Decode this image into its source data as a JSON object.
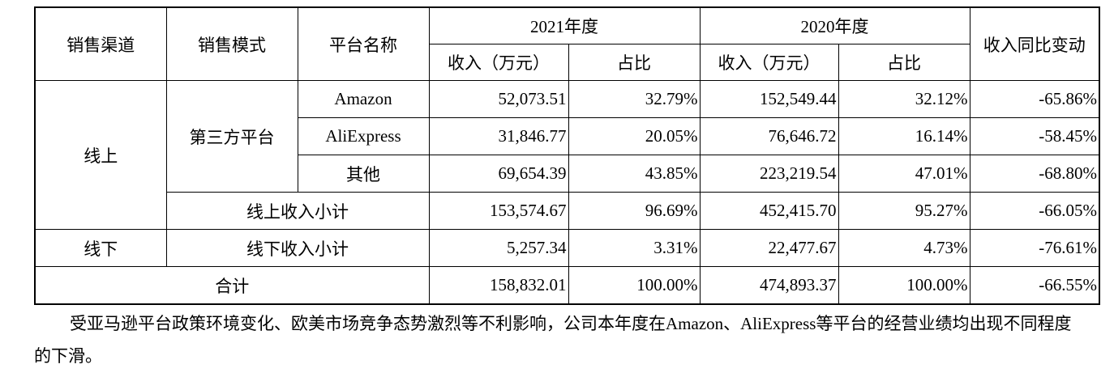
{
  "table": {
    "header_top": [
      "销售渠道",
      "销售模式",
      "平台名称",
      "2021年度",
      "2020年度",
      "收入同比变动"
    ],
    "header_sub": [
      "收入（万元）",
      "占比",
      "收入（万元）",
      "占比"
    ],
    "channels": [
      "线上",
      "线下"
    ],
    "modes": [
      "第三方平台"
    ],
    "rows": [
      {
        "label": "Amazon",
        "cells": [
          "52,073.51",
          "32.79%",
          "152,549.44",
          "32.12%",
          "-65.86%"
        ]
      },
      {
        "label": "AliExpress",
        "cells": [
          "31,846.77",
          "20.05%",
          "76,646.72",
          "16.14%",
          "-58.45%"
        ]
      },
      {
        "label": "其他",
        "cells": [
          "69,654.39",
          "43.85%",
          "223,219.54",
          "47.01%",
          "-68.80%"
        ]
      },
      {
        "label": "线上收入小计",
        "cells": [
          "153,574.67",
          "96.69%",
          "452,415.70",
          "95.27%",
          "-66.05%"
        ]
      },
      {
        "label": "线下收入小计",
        "cells": [
          "5,257.34",
          "3.31%",
          "22,477.67",
          "4.73%",
          "-76.61%"
        ]
      },
      {
        "label": "合计",
        "cells": [
          "158,832.01",
          "100.00%",
          "474,893.37",
          "100.00%",
          "-66.55%"
        ]
      }
    ]
  },
  "paragraph": "受亚马逊平台政策环境变化、欧美市场竞争态势激烈等不利影响，公司本年度在Amazon、AliExpress等平台的经营业绩均出现不同程度的下滑。"
}
